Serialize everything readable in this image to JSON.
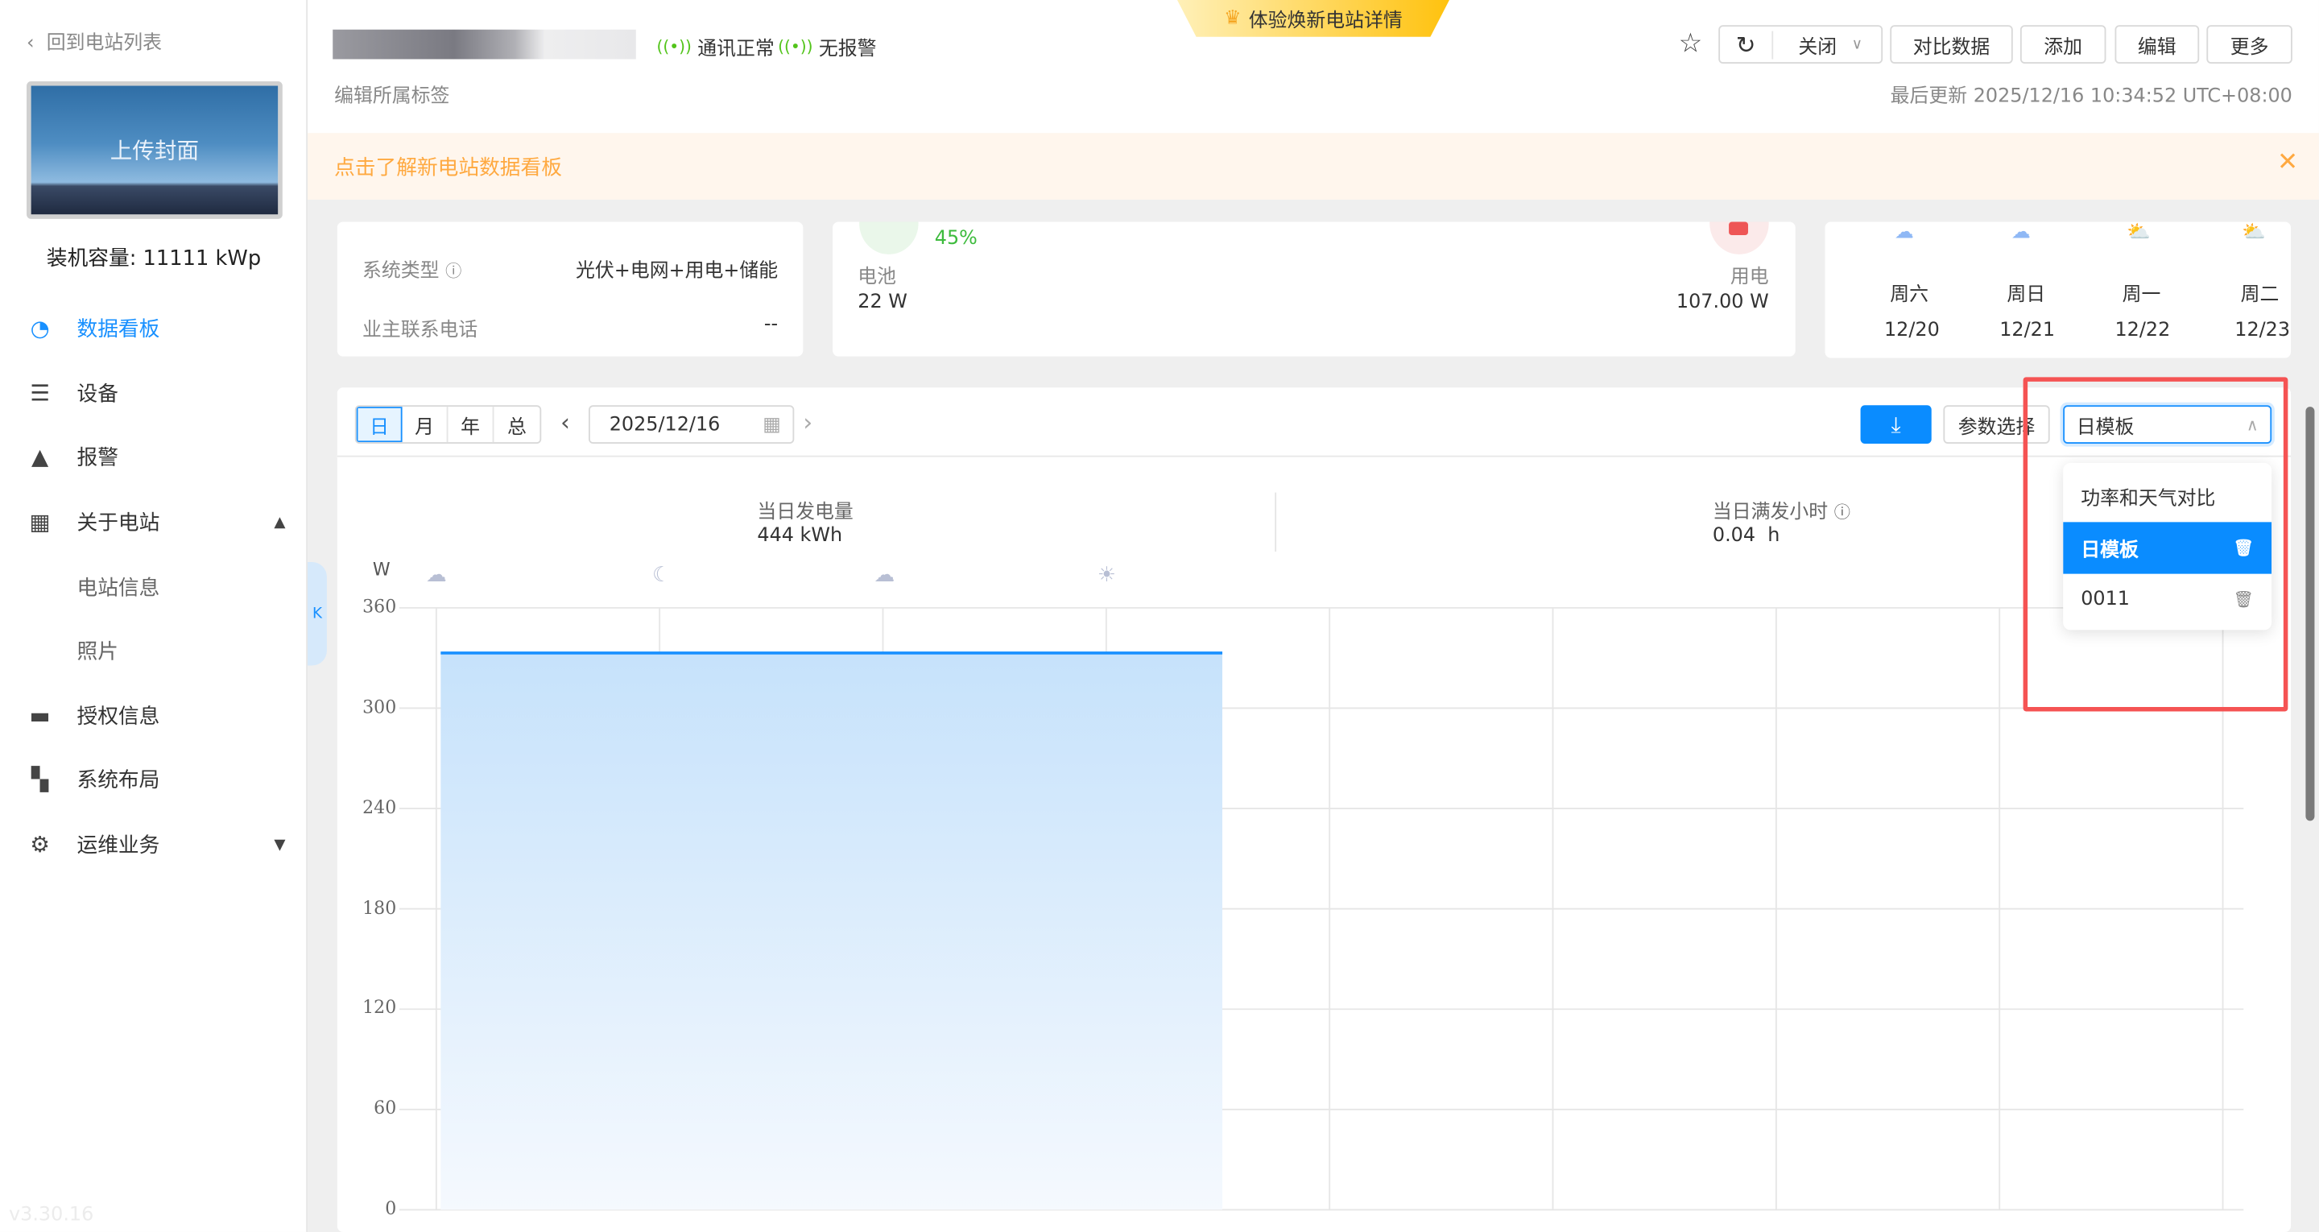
{
  "sidebar": {
    "back": "回到电站列表",
    "cover_label": "上传封面",
    "capacity": "装机容量: 11111 kWp",
    "items": [
      {
        "label": "数据看板",
        "icon": "dashboard-icon"
      },
      {
        "label": "设备",
        "icon": "server-icon"
      },
      {
        "label": "报警",
        "icon": "warning-icon"
      },
      {
        "label": "关于电站",
        "icon": "station-icon"
      },
      {
        "label": "电站信息"
      },
      {
        "label": "照片"
      },
      {
        "label": "授权信息",
        "icon": "briefcase-icon"
      },
      {
        "label": "系统布局",
        "icon": "layout-icon"
      },
      {
        "label": "运维业务",
        "icon": "gear-icon"
      }
    ],
    "version": "v3.30.16"
  },
  "header": {
    "promo": "体验焕新电站详情",
    "comm_status": "通讯正常",
    "alarm_status": "无报警",
    "edit_tags": "编辑所属标签",
    "close_select": "关闭",
    "compare": "对比数据",
    "add": "添加",
    "edit": "编辑",
    "more": "更多",
    "last_update": "最后更新 2025/12/16 10:34:52 UTC+08:00"
  },
  "banner": {
    "text": "点击了解新电站数据看板"
  },
  "info_card": {
    "system_type_label": "系统类型",
    "system_type_value": "光伏+电网+用电+储能",
    "owner_phone_label": "业主联系电话",
    "owner_phone_value": "--"
  },
  "flow_card": {
    "battery_soc": "45%",
    "battery_label": "电池",
    "battery_value": "22 W",
    "load_label": "用电",
    "load_value": "107.00 W"
  },
  "weather": [
    {
      "day": "周六",
      "date": "12/20",
      "icon": "rain-icon"
    },
    {
      "day": "周日",
      "date": "12/21",
      "icon": "snow-icon"
    },
    {
      "day": "周一",
      "date": "12/22",
      "icon": "partly-cloudy-icon"
    },
    {
      "day": "周二",
      "date": "12/23",
      "icon": "partly-cloudy-icon"
    }
  ],
  "chart_toolbar": {
    "periods": [
      "日",
      "月",
      "年",
      "总"
    ],
    "active_period": "日",
    "date": "2025/12/16",
    "param_select": "参数选择",
    "template": "日模板"
  },
  "template_dropdown": {
    "options": [
      "功率和天气对比",
      "日模板",
      "0011"
    ],
    "selected": "日模板"
  },
  "stats": {
    "daily_gen_label": "当日发电量",
    "daily_gen_value": "444 kWh",
    "full_hours_label": "当日满发小时",
    "full_hours_value": "0.04  h"
  },
  "accent": "#1890ff",
  "chart_data": {
    "type": "area",
    "ylabel": "W",
    "ylim": [
      0,
      360
    ],
    "yticks": [
      "360",
      "300",
      "240",
      "180",
      "120",
      "60",
      "0"
    ],
    "grid": true,
    "weather_icons": [
      "cloudy-night-icon",
      "moon-icon",
      "cloudy-night-icon",
      "sun-icon"
    ],
    "series": [
      {
        "values": [
          333,
          333,
          333,
          333,
          333,
          333,
          333,
          333,
          null,
          null,
          null,
          null,
          null,
          null,
          null,
          null,
          null
        ]
      }
    ]
  }
}
